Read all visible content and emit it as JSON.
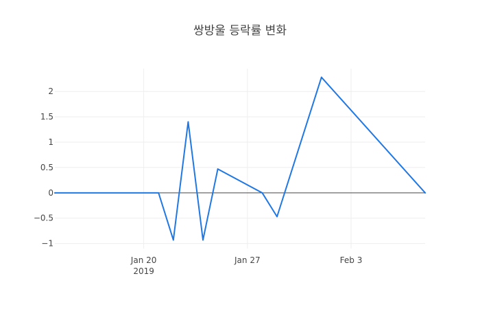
{
  "chart_data": {
    "type": "line",
    "title": "쌍방울 등락률 변화",
    "xlabel": "",
    "ylabel": "",
    "x_type": "date",
    "xlim": [
      "2019-01-14",
      "2019-02-08"
    ],
    "ylim": [
      -1.1,
      2.45
    ],
    "x_ticks": [
      {
        "value": "2019-01-20",
        "label": "Jan 20",
        "sublabel": "2019"
      },
      {
        "value": "2019-01-27",
        "label": "Jan 27",
        "sublabel": ""
      },
      {
        "value": "2019-02-03",
        "label": "Feb 3",
        "sublabel": ""
      }
    ],
    "y_ticks": [
      {
        "value": 2,
        "label": "2"
      },
      {
        "value": 1.5,
        "label": "1.5"
      },
      {
        "value": 1,
        "label": "1"
      },
      {
        "value": 0.5,
        "label": "0.5"
      },
      {
        "value": 0,
        "label": "0"
      },
      {
        "value": -0.5,
        "label": "−0.5"
      },
      {
        "value": -1,
        "label": "−1"
      }
    ],
    "grid": true,
    "zero_line": true,
    "legend": "none",
    "series": [
      {
        "color": "#1f77e4",
        "x": [
          "2019-01-14",
          "2019-01-21",
          "2019-01-22",
          "2019-01-23",
          "2019-01-24",
          "2019-01-25",
          "2019-01-28",
          "2019-01-29",
          "2019-02-01",
          "2019-02-08"
        ],
        "y": [
          0,
          0,
          -0.93,
          1.4,
          -0.93,
          0.47,
          0,
          -0.47,
          2.28,
          0
        ]
      }
    ]
  }
}
